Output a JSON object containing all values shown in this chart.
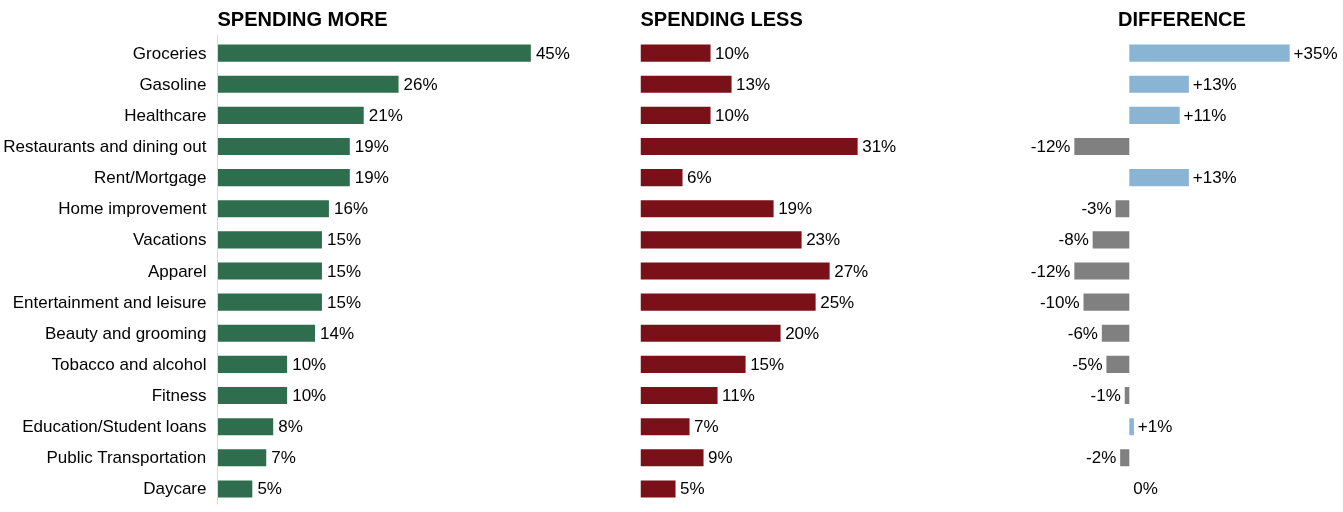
{
  "chart_data": [
    {
      "type": "bar",
      "orientation": "horizontal",
      "title": "SPENDING MORE",
      "categories": [
        "Groceries",
        "Gasoline",
        "Healthcare",
        "Restaurants and dining out",
        "Rent/Mortgage",
        "Home improvement",
        "Vacations",
        "Apparel",
        "Entertainment and leisure",
        "Beauty and grooming",
        "Tobacco and alcohol",
        "Fitness",
        "Education/Student loans",
        "Public Transportation",
        "Daycare"
      ],
      "values": [
        45,
        26,
        21,
        19,
        19,
        16,
        15,
        15,
        15,
        14,
        10,
        10,
        8,
        7,
        5
      ],
      "color": "#2e6e4e",
      "value_labels": [
        "45%",
        "26%",
        "21%",
        "19%",
        "19%",
        "16%",
        "15%",
        "15%",
        "15%",
        "14%",
        "10%",
        "10%",
        "8%",
        "7%",
        "5%"
      ],
      "tick_labels": "y"
    },
    {
      "type": "bar",
      "orientation": "horizontal",
      "title": "SPENDING LESS",
      "categories": [
        null,
        null,
        null,
        null,
        null,
        null,
        null,
        null,
        null,
        null,
        null,
        null,
        null,
        null,
        null
      ],
      "values": [
        10,
        13,
        10,
        31,
        6,
        19,
        23,
        27,
        25,
        20,
        15,
        11,
        7,
        9,
        5
      ],
      "color": "#7b1118",
      "value_labels": [
        "10%",
        "13%",
        "10%",
        "31%",
        "6%",
        "19%",
        "23%",
        "27%",
        "25%",
        "20%",
        "15%",
        "11%",
        "7%",
        "9%",
        "5%"
      ],
      "tick_labels": false
    },
    {
      "type": "bar",
      "orientation": "horizontal",
      "title": "DIFFERENCE",
      "categories": [
        null,
        null,
        null,
        null,
        null,
        null,
        null,
        null,
        null,
        null,
        null,
        null,
        null,
        null,
        null
      ],
      "values": [
        35,
        13,
        11,
        -12,
        13,
        -3,
        -8,
        -12,
        -10,
        -6,
        -5,
        -1,
        1,
        -2,
        0
      ],
      "colors": [
        "#8ab4d4",
        "#8ab4d4",
        "#8ab4d4",
        "#808080",
        "#8ab4d4",
        "#808080",
        "#808080",
        "#808080",
        "#808080",
        "#808080",
        "#808080",
        "#808080",
        "#8ab4d4",
        "#808080",
        "#808080"
      ],
      "value_labels": [
        "+35%",
        "+13%",
        "+11%",
        "-12%",
        "+13%",
        "-3%",
        "-8%",
        "-12%",
        "-10%",
        "-6%",
        "-5%",
        "-1%",
        "+1%",
        "-2%",
        "0%"
      ],
      "tick_labels": false
    }
  ]
}
